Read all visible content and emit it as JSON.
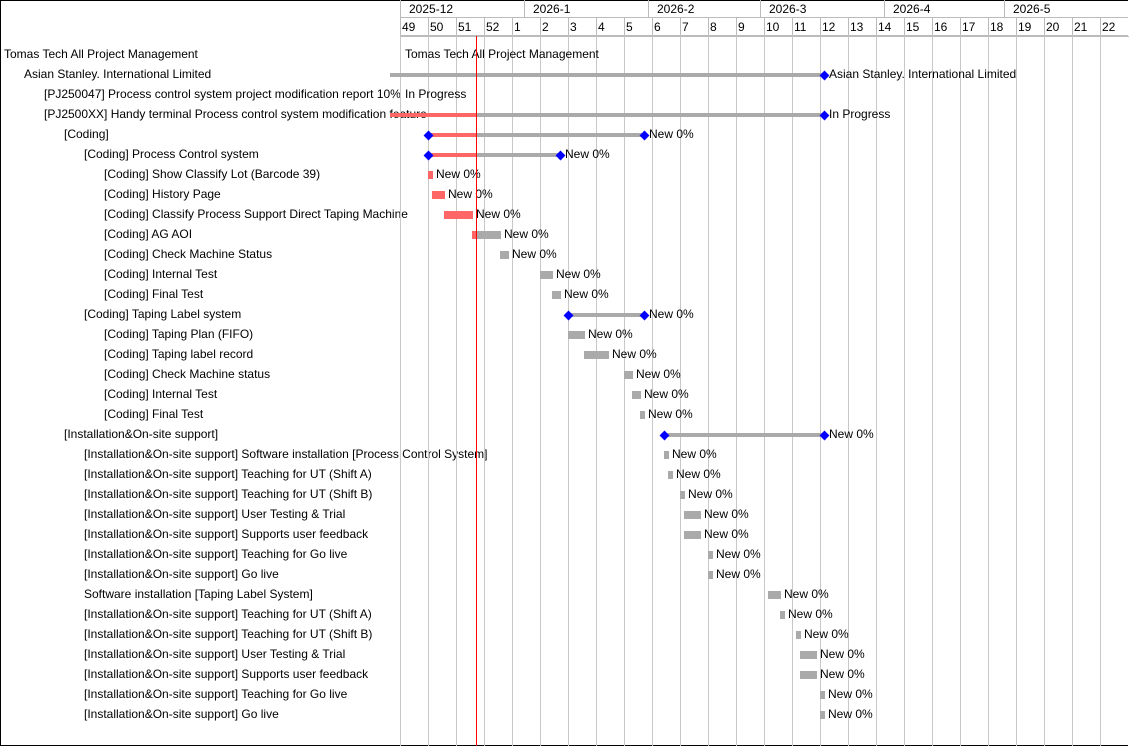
{
  "timeline": {
    "chart_start": "2025-12-01",
    "today": "2025-12-20",
    "months": [
      "2025-12",
      "2026-1",
      "2026-2",
      "2026-3",
      "2026-4",
      "2026-5"
    ],
    "month_days": [
      31,
      31,
      28,
      31,
      30,
      31
    ],
    "weeks": [
      "49",
      "50",
      "51",
      "52",
      "1",
      "2",
      "3",
      "4",
      "5",
      "6",
      "7",
      "8",
      "9",
      "10",
      "11",
      "12",
      "13",
      "14",
      "15",
      "16",
      "17",
      "18",
      "19",
      "20",
      "21",
      "22"
    ]
  },
  "colors": {
    "bar": "#aaaaaa",
    "late": "#ff6666",
    "diamond": "#0000ff",
    "today": "#ff0000",
    "grid": "#c8c8c8"
  },
  "chart_data": {
    "type": "gantt",
    "rows": [
      {
        "subject": "Tomas Tech All Project Management",
        "level": 0,
        "kind": "none",
        "label": "Tomas Tech All Project Management"
      },
      {
        "subject": "Asian Stanley. International Limited",
        "level": 1,
        "kind": "project",
        "start": null,
        "due": "2026-03-16",
        "label": "Asian Stanley. International Limited"
      },
      {
        "subject": "[PJ250047] Process control system project modification report 10%",
        "level": 2,
        "kind": "none",
        "label": "In Progress"
      },
      {
        "subject": "[PJ2500XX] Handy terminal Process control system modification feature",
        "level": 2,
        "kind": "version",
        "start": null,
        "due": "2026-03-16",
        "label": "In Progress"
      },
      {
        "subject": "[Coding]",
        "level": 3,
        "kind": "parent",
        "start": "2025-12-08",
        "due": "2026-01-30",
        "label": "New 0%"
      },
      {
        "subject": "[Coding] Process Control system",
        "level": 4,
        "kind": "parent",
        "start": "2025-12-08",
        "due": "2026-01-09",
        "label": "New 0%"
      },
      {
        "subject": "[Coding] Show Classify Lot (Barcode 39)",
        "level": 5,
        "kind": "task",
        "start": "2025-12-08",
        "due": "2025-12-08",
        "label": "New 0%"
      },
      {
        "subject": "[Coding] History Page",
        "level": 5,
        "kind": "task",
        "start": "2025-12-09",
        "due": "2025-12-11",
        "label": "New 0%"
      },
      {
        "subject": "[Coding] Classify Process Support Direct Taping Machine",
        "level": 5,
        "kind": "task",
        "start": "2025-12-12",
        "due": "2025-12-18",
        "label": "New 0%"
      },
      {
        "subject": "[Coding] AG AOI",
        "level": 5,
        "kind": "task",
        "start": "2025-12-19",
        "due": "2025-12-25",
        "label": "New 0%"
      },
      {
        "subject": "[Coding] Check Machine Status",
        "level": 5,
        "kind": "task",
        "start": "2025-12-26",
        "due": "2025-12-27",
        "label": "New 0%"
      },
      {
        "subject": "[Coding] Internal Test",
        "level": 5,
        "kind": "task",
        "start": "2026-01-05",
        "due": "2026-01-07",
        "label": "New 0%"
      },
      {
        "subject": "[Coding] Final Test",
        "level": 5,
        "kind": "task",
        "start": "2026-01-08",
        "due": "2026-01-09",
        "label": "New 0%"
      },
      {
        "subject": "[Coding] Taping Label system",
        "level": 4,
        "kind": "parent",
        "start": "2026-01-12",
        "due": "2026-01-30",
        "label": "New 0%"
      },
      {
        "subject": "[Coding] Taping Plan (FIFO)",
        "level": 5,
        "kind": "task",
        "start": "2026-01-12",
        "due": "2026-01-15",
        "label": "New 0%"
      },
      {
        "subject": "[Coding] Taping label record",
        "level": 5,
        "kind": "task",
        "start": "2026-01-16",
        "due": "2026-01-21",
        "label": "New 0%"
      },
      {
        "subject": "[Coding] Check Machine status",
        "level": 5,
        "kind": "task",
        "start": "2026-01-26",
        "due": "2026-01-27",
        "label": "New 0%"
      },
      {
        "subject": "[Coding] Internal Test",
        "level": 5,
        "kind": "task",
        "start": "2026-01-28",
        "due": "2026-01-29",
        "label": "New 0%"
      },
      {
        "subject": "[Coding] Final Test",
        "level": 5,
        "kind": "task",
        "start": "2026-01-30",
        "due": "2026-01-30",
        "label": "New 0%"
      },
      {
        "subject": "[Installation&On-site support]",
        "level": 3,
        "kind": "parent",
        "start": "2026-02-05",
        "due": "2026-03-16",
        "label": "New 0%"
      },
      {
        "subject": "[Installation&On-site support] Software installation [Process Control System]",
        "level": 4,
        "kind": "task",
        "start": "2026-02-05",
        "due": "2026-02-05",
        "label": "New 0%"
      },
      {
        "subject": "[Installation&On-site support] Teaching for UT (Shift A)",
        "level": 4,
        "kind": "task",
        "start": "2026-02-06",
        "due": "2026-02-06",
        "label": "New 0%"
      },
      {
        "subject": "[Installation&On-site support] Teaching for UT (Shift B)",
        "level": 4,
        "kind": "task",
        "start": "2026-02-09",
        "due": "2026-02-09",
        "label": "New 0%"
      },
      {
        "subject": "[Installation&On-site support] User Testing & Trial",
        "level": 4,
        "kind": "task",
        "start": "2026-02-10",
        "due": "2026-02-13",
        "label": "New 0%"
      },
      {
        "subject": "[Installation&On-site support] Supports user feedback",
        "level": 4,
        "kind": "task",
        "start": "2026-02-10",
        "due": "2026-02-13",
        "label": "New 0%"
      },
      {
        "subject": "[Installation&On-site support] Teaching for Go live",
        "level": 4,
        "kind": "task",
        "start": "2026-02-16",
        "due": "2026-02-16",
        "label": "New 0%"
      },
      {
        "subject": "[Installation&On-site support] Go live",
        "level": 4,
        "kind": "task",
        "start": "2026-02-16",
        "due": "2026-02-16",
        "label": "New 0%"
      },
      {
        "subject": "Software installation [Taping Label System]",
        "level": 4,
        "kind": "task",
        "start": "2026-03-03",
        "due": "2026-03-05",
        "label": "New 0%"
      },
      {
        "subject": "[Installation&On-site support] Teaching for UT (Shift A)",
        "level": 4,
        "kind": "task",
        "start": "2026-03-06",
        "due": "2026-03-06",
        "label": "New 0%"
      },
      {
        "subject": "[Installation&On-site support] Teaching for UT (Shift B)",
        "level": 4,
        "kind": "task",
        "start": "2026-03-10",
        "due": "2026-03-10",
        "label": "New 0%"
      },
      {
        "subject": "[Installation&On-site support] User Testing & Trial",
        "level": 4,
        "kind": "task",
        "start": "2026-03-11",
        "due": "2026-03-14",
        "label": "New 0%"
      },
      {
        "subject": "[Installation&On-site support] Supports user feedback",
        "level": 4,
        "kind": "task",
        "start": "2026-03-11",
        "due": "2026-03-14",
        "label": "New 0%"
      },
      {
        "subject": "[Installation&On-site support] Teaching for Go live",
        "level": 4,
        "kind": "task",
        "start": "2026-03-16",
        "due": "2026-03-16",
        "label": "New 0%"
      },
      {
        "subject": "[Installation&On-site support] Go live",
        "level": 4,
        "kind": "task",
        "start": "2026-03-16",
        "due": "2026-03-16",
        "label": "New 0%"
      }
    ]
  }
}
